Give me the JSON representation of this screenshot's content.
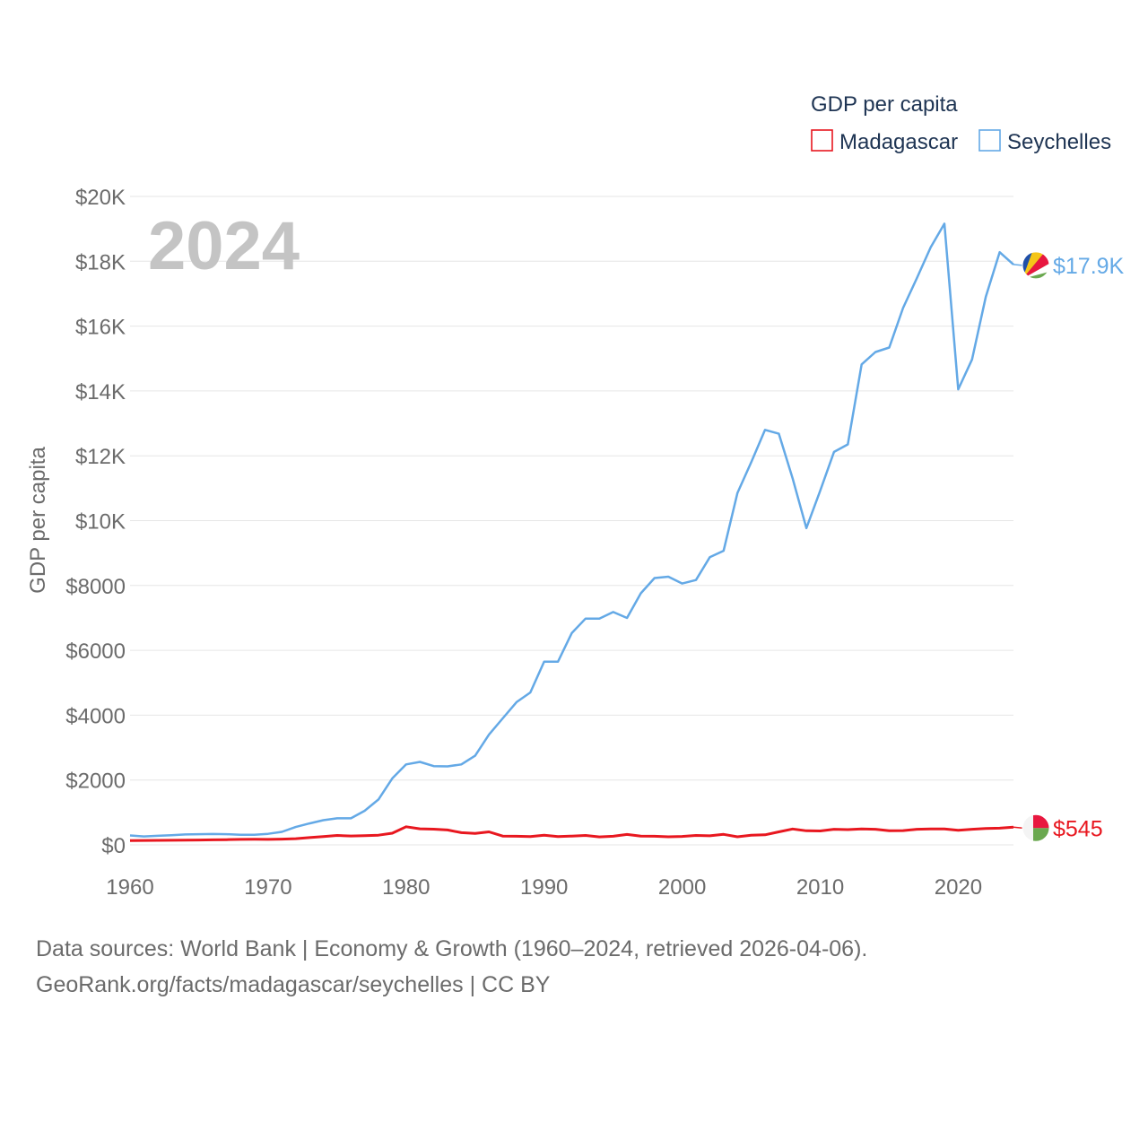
{
  "chart_data": {
    "type": "line",
    "year_label": "2024",
    "ylabel": "GDP per capita",
    "legend_title": "GDP per capita",
    "legend_position": "top-right",
    "x_ticks": [
      "1960",
      "1970",
      "1980",
      "1990",
      "2000",
      "2010",
      "2020"
    ],
    "x_tick_values": [
      1960,
      1970,
      1980,
      1990,
      2000,
      2010,
      2020
    ],
    "y_ticks": [
      "$0",
      "$2000",
      "$4000",
      "$6000",
      "$8000",
      "$10K",
      "$12K",
      "$14K",
      "$16K",
      "$18K",
      "$20K"
    ],
    "y_tick_values": [
      0,
      2000,
      4000,
      6000,
      8000,
      10000,
      12000,
      14000,
      16000,
      18000,
      20000
    ],
    "xlim": [
      1960,
      2024
    ],
    "ylim": [
      0,
      20000
    ],
    "x": [
      1960,
      1961,
      1962,
      1963,
      1964,
      1965,
      1966,
      1967,
      1968,
      1969,
      1970,
      1971,
      1972,
      1973,
      1974,
      1975,
      1976,
      1977,
      1978,
      1979,
      1980,
      1981,
      1982,
      1983,
      1984,
      1985,
      1986,
      1987,
      1988,
      1989,
      1990,
      1991,
      1992,
      1993,
      1994,
      1995,
      1996,
      1997,
      1998,
      1999,
      2000,
      2001,
      2002,
      2003,
      2004,
      2005,
      2006,
      2007,
      2008,
      2009,
      2010,
      2011,
      2012,
      2013,
      2014,
      2015,
      2016,
      2017,
      2018,
      2019,
      2020,
      2021,
      2022,
      2023,
      2024
    ],
    "series": [
      {
        "name": "Madagascar",
        "color": "#e8171f",
        "end_label": "$545",
        "flag": "madagascar-flag",
        "values": [
          130,
          135,
          138,
          142,
          146,
          150,
          155,
          160,
          168,
          172,
          170,
          178,
          190,
          225,
          255,
          290,
          275,
          282,
          300,
          360,
          560,
          495,
          485,
          460,
          375,
          355,
          400,
          270,
          265,
          255,
          300,
          255,
          270,
          290,
          245,
          265,
          320,
          270,
          265,
          250,
          260,
          290,
          280,
          325,
          250,
          295,
          310,
          400,
          490,
          435,
          430,
          480,
          470,
          490,
          480,
          435,
          440,
          480,
          490,
          490,
          450,
          480,
          505,
          515,
          545
        ]
      },
      {
        "name": "Seychelles",
        "color": "#64a9e6",
        "end_label": "$17.9K",
        "flag": "seychelles-flag",
        "values": [
          290,
          260,
          280,
          300,
          320,
          330,
          335,
          330,
          310,
          310,
          340,
          400,
          550,
          660,
          760,
          820,
          820,
          1050,
          1400,
          2050,
          2480,
          2560,
          2430,
          2420,
          2480,
          2750,
          3400,
          3900,
          4400,
          4700,
          5650,
          5650,
          6530,
          6980,
          6980,
          7180,
          7000,
          7760,
          8230,
          8270,
          8060,
          8170,
          8870,
          9070,
          10850,
          11800,
          12800,
          12680,
          11300,
          9770,
          10920,
          12120,
          12350,
          14820,
          15200,
          15340,
          16560,
          17480,
          18430,
          19160,
          14050,
          14970,
          16910,
          18280,
          17900
        ]
      }
    ]
  },
  "source_line1": "Data sources: World Bank | Economy & Growth (1960–2024, retrieved 2026-04-06).",
  "source_line2": "GeoRank.org/facts/madagascar/seychelles | CC BY",
  "colors": {
    "grid": "#e6e6e6",
    "tick_text": "#6b6b6b",
    "year_label": "#c4c4c4",
    "legend_text": "#1e3453"
  }
}
